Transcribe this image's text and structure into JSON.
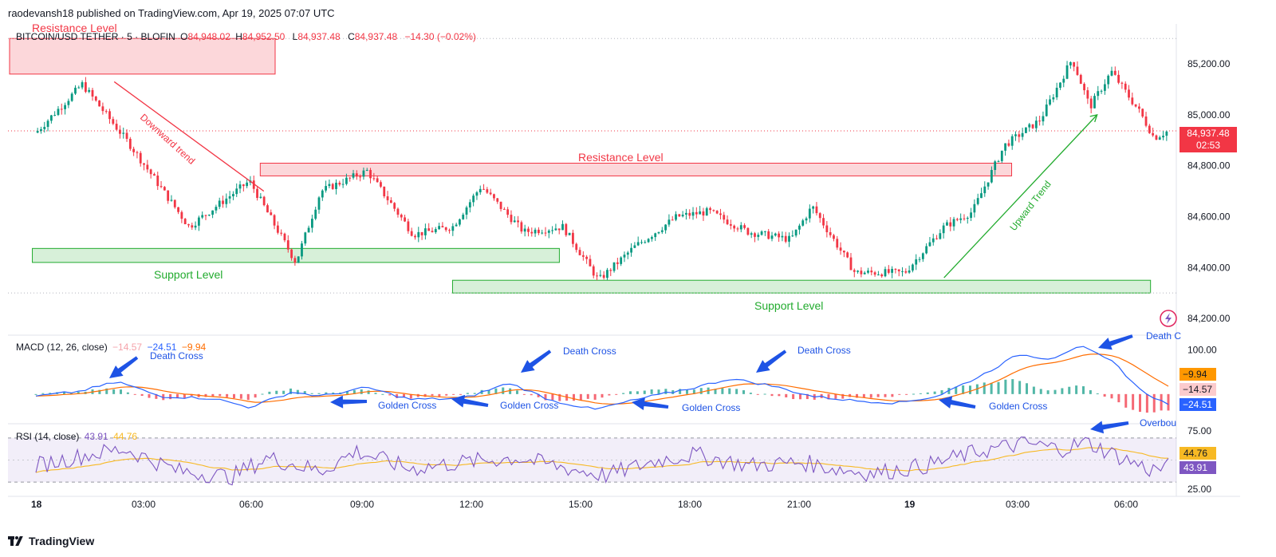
{
  "header": {
    "published": "raodevansh18 published on TradingView.com, Apr 19, 2025 07:07 UTC"
  },
  "main_legend": {
    "symbol": "BITCOIN/USD TETHER · 5 · BLOFIN",
    "open_label": "O",
    "open": "84,948.02",
    "high_label": "H",
    "high": "84,952.50",
    "low_label": "L",
    "low": "84,937.48",
    "close_label": "C",
    "close": "84,937.48",
    "change": "−14.30 (−0.02%)"
  },
  "macd_legend": {
    "name": "MACD (12, 26, close)",
    "hist": "−14.57",
    "macd": "−24.51",
    "signal": "−9.94"
  },
  "rsi_legend": {
    "name": "RSI (14, close)",
    "rsi": "43.91",
    "ma": "44.76"
  },
  "current_price": {
    "value": "84,937.48",
    "countdown": "02:53"
  },
  "colors": {
    "up": "#089981",
    "down": "#f23645",
    "resistance": "#f23645",
    "support": "#22ab2e",
    "macd_line": "#2962ff",
    "signal_line": "#ff6d00",
    "rsi_line": "#7e57c2",
    "rsi_ma": "#f7b924",
    "annotation_arrow": "#1e53e5",
    "price_tag_bg": "#f23645"
  },
  "annotations": {
    "resistance_top": "Resistance Level",
    "resistance_mid": "Resistance Level",
    "support_left": "Support Level",
    "support_right": "Support Level",
    "downward_trend": "Downward trend",
    "upward_trend": "Upward Trend",
    "macd_labels": [
      {
        "text": "Death Cross"
      },
      {
        "text": "Death Cross"
      },
      {
        "text": "Death Cross"
      },
      {
        "text": "Death C"
      },
      {
        "text": "Golden Cross"
      },
      {
        "text": "Golden Cross"
      },
      {
        "text": "Golden Cross"
      },
      {
        "text": "Golden Cross"
      }
    ],
    "rsi_label": "Overbou"
  },
  "brand": "TradingView",
  "chart_data": [
    {
      "type": "candlestick",
      "title": "BITCOIN/USD TETHER · 5 · BLOFIN",
      "x_ticks": [
        "18",
        "03:00",
        "06:00",
        "09:00",
        "12:00",
        "15:00",
        "18:00",
        "21:00",
        "19",
        "03:00",
        "06:00"
      ],
      "y_ticks": [
        "85,200.00",
        "85,000.00",
        "84,800.00",
        "84,600.00",
        "84,400.00",
        "84,200.00"
      ],
      "ylim": [
        84150,
        85310
      ],
      "key_prices": [
        {
          "t": 0.0,
          "price": 84930
        },
        {
          "t": 1.3,
          "price": 85120
        },
        {
          "t": 2.6,
          "price": 84890
        },
        {
          "t": 4.3,
          "price": 84560
        },
        {
          "t": 6.0,
          "price": 84740
        },
        {
          "t": 7.3,
          "price": 84420
        },
        {
          "t": 8.0,
          "price": 84700
        },
        {
          "t": 9.3,
          "price": 84780
        },
        {
          "t": 10.6,
          "price": 84530
        },
        {
          "t": 11.7,
          "price": 84560
        },
        {
          "t": 12.5,
          "price": 84720
        },
        {
          "t": 13.7,
          "price": 84540
        },
        {
          "t": 14.8,
          "price": 84560
        },
        {
          "t": 15.8,
          "price": 84350
        },
        {
          "t": 16.8,
          "price": 84480
        },
        {
          "t": 18.0,
          "price": 84600
        },
        {
          "t": 18.9,
          "price": 84620
        },
        {
          "t": 20.0,
          "price": 84540
        },
        {
          "t": 21.2,
          "price": 84510
        },
        {
          "t": 21.8,
          "price": 84640
        },
        {
          "t": 23.0,
          "price": 84380
        },
        {
          "t": 24.4,
          "price": 84380
        },
        {
          "t": 25.5,
          "price": 84560
        },
        {
          "t": 26.3,
          "price": 84620
        },
        {
          "t": 27.2,
          "price": 84880
        },
        {
          "t": 28.2,
          "price": 84980
        },
        {
          "t": 29.1,
          "price": 85220
        },
        {
          "t": 29.6,
          "price": 85030
        },
        {
          "t": 30.2,
          "price": 85170
        },
        {
          "t": 31.0,
          "price": 85010
        },
        {
          "t": 31.4,
          "price": 84910
        },
        {
          "t": 31.8,
          "price": 84937
        }
      ],
      "zones": [
        {
          "name": "Resistance Level",
          "kind": "resistance",
          "t_from": -0.1,
          "t_to": 6.9,
          "from": 85160,
          "to": 85300
        },
        {
          "name": "Resistance Level",
          "kind": "resistance",
          "t_from": 6.3,
          "t_to": 27.4,
          "from": 84760,
          "to": 84810
        },
        {
          "name": "Support Level",
          "kind": "support",
          "t_from": -0.1,
          "t_to": 14.7,
          "from": 84420,
          "to": 84475
        },
        {
          "name": "Support Level",
          "kind": "support",
          "t_from": 11.7,
          "t_to": 31.3,
          "from": 84300,
          "to": 84350
        }
      ],
      "trendlines": [
        {
          "name": "Downward trend",
          "t1": 2.2,
          "p1": 85130,
          "t2": 6.4,
          "p2": 84700
        },
        {
          "name": "Upward Trend",
          "t1": 25.5,
          "p1": 84360,
          "t2": 29.8,
          "p2": 85000
        }
      ],
      "current_price": 84937.48
    },
    {
      "type": "line",
      "title": "MACD (12, 26, close)",
      "y_ticks": [
        "100.00"
      ],
      "ylim": [
        -60,
        130
      ],
      "key_macd": [
        {
          "t": 0.0,
          "v": -5
        },
        {
          "t": 1.2,
          "v": 6
        },
        {
          "t": 2.3,
          "v": 28
        },
        {
          "t": 3.5,
          "v": -5
        },
        {
          "t": 5.0,
          "v": -10
        },
        {
          "t": 6.0,
          "v": -30
        },
        {
          "t": 7.2,
          "v": 5
        },
        {
          "t": 8.0,
          "v": -5
        },
        {
          "t": 9.3,
          "v": 15
        },
        {
          "t": 10.5,
          "v": -12
        },
        {
          "t": 12.0,
          "v": -10
        },
        {
          "t": 13.3,
          "v": 25
        },
        {
          "t": 14.5,
          "v": -15
        },
        {
          "t": 15.7,
          "v": -35
        },
        {
          "t": 17.0,
          "v": -10
        },
        {
          "t": 18.5,
          "v": 15
        },
        {
          "t": 19.5,
          "v": 35
        },
        {
          "t": 20.6,
          "v": 20
        },
        {
          "t": 21.8,
          "v": -5
        },
        {
          "t": 23.0,
          "v": -15
        },
        {
          "t": 24.2,
          "v": -20
        },
        {
          "t": 25.3,
          "v": -5
        },
        {
          "t": 26.5,
          "v": 40
        },
        {
          "t": 27.6,
          "v": 90
        },
        {
          "t": 28.5,
          "v": 80
        },
        {
          "t": 29.3,
          "v": 110
        },
        {
          "t": 30.3,
          "v": 70
        },
        {
          "t": 31.0,
          "v": 10
        },
        {
          "t": 31.8,
          "v": -24.51
        }
      ],
      "macd_last": -24.51,
      "signal_last": -9.94,
      "hist_last": -14.57
    },
    {
      "type": "line",
      "title": "RSI (14, close)",
      "y_ticks": [
        "75.00",
        "25.00"
      ],
      "ylim": [
        20,
        80
      ],
      "bands": [
        30,
        70
      ],
      "key_rsi": [
        {
          "t": 0.0,
          "v": 45
        },
        {
          "t": 1.5,
          "v": 55
        },
        {
          "t": 2.5,
          "v": 60
        },
        {
          "t": 4.0,
          "v": 40
        },
        {
          "t": 5.5,
          "v": 35
        },
        {
          "t": 6.5,
          "v": 52
        },
        {
          "t": 8.0,
          "v": 40
        },
        {
          "t": 9.0,
          "v": 58
        },
        {
          "t": 10.5,
          "v": 42
        },
        {
          "t": 12.0,
          "v": 48
        },
        {
          "t": 13.5,
          "v": 52
        },
        {
          "t": 15.0,
          "v": 42
        },
        {
          "t": 16.0,
          "v": 36
        },
        {
          "t": 17.5,
          "v": 50
        },
        {
          "t": 18.5,
          "v": 55
        },
        {
          "t": 20.0,
          "v": 45
        },
        {
          "t": 21.5,
          "v": 48
        },
        {
          "t": 22.5,
          "v": 42
        },
        {
          "t": 23.5,
          "v": 38
        },
        {
          "t": 25.0,
          "v": 45
        },
        {
          "t": 26.5,
          "v": 58
        },
        {
          "t": 27.8,
          "v": 65
        },
        {
          "t": 28.8,
          "v": 60
        },
        {
          "t": 29.5,
          "v": 66
        },
        {
          "t": 30.5,
          "v": 52
        },
        {
          "t": 31.3,
          "v": 41
        },
        {
          "t": 31.8,
          "v": 43.91
        }
      ],
      "rsi_last": 43.91,
      "ma_last": 44.76
    }
  ]
}
